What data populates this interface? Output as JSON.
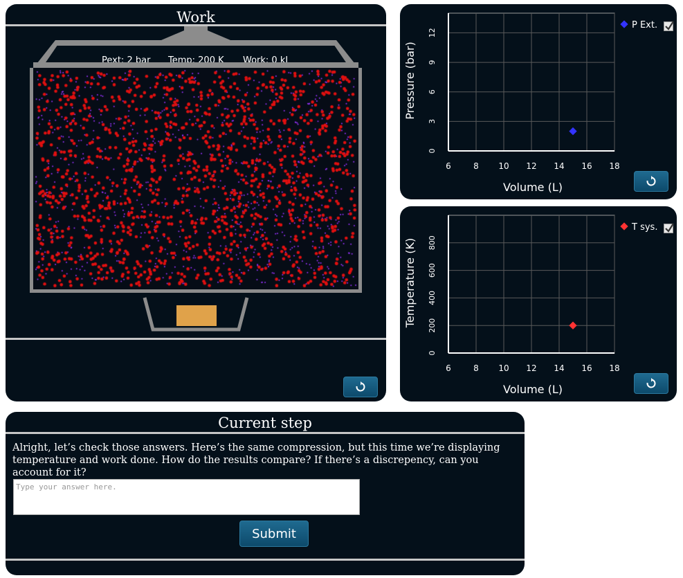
{
  "work_panel": {
    "title": "Work",
    "readouts": {
      "pext": "Pext: 2 bar",
      "temp": "Temp: 200 K",
      "work": "Work: 0 kJ"
    },
    "reset_icon": "reset-icon"
  },
  "pressure_graph": {
    "legend_label": "P Ext.",
    "legend_color": "#3333ff",
    "checked": true,
    "chart_data": {
      "type": "scatter",
      "xlabel": "Volume (L)",
      "ylabel": "Pressure (bar)",
      "xlim": [
        6,
        18
      ],
      "ylim": [
        0,
        14
      ],
      "x_ticks": [
        6,
        8,
        10,
        12,
        14,
        16,
        18
      ],
      "y_ticks": [
        0,
        3,
        6,
        9,
        12
      ],
      "grid": true,
      "legend": "top-right",
      "series": [
        {
          "name": "P Ext.",
          "color": "#3333ff",
          "points": [
            [
              15,
              2
            ]
          ]
        }
      ]
    }
  },
  "temperature_graph": {
    "legend_label": "T sys.",
    "legend_color": "#ff3333",
    "checked": true,
    "chart_data": {
      "type": "scatter",
      "xlabel": "Volume (L)",
      "ylabel": "Temperature (K)",
      "xlim": [
        6,
        18
      ],
      "ylim": [
        0,
        1000
      ],
      "x_ticks": [
        6,
        8,
        10,
        12,
        14,
        16,
        18
      ],
      "y_ticks": [
        0,
        200,
        400,
        600,
        800
      ],
      "grid": true,
      "legend": "top-right",
      "series": [
        {
          "name": "T sys.",
          "color": "#ff3333",
          "points": [
            [
              15,
              200
            ]
          ]
        }
      ]
    }
  },
  "current_step": {
    "title": "Current step",
    "prompt": "Alright, let’s check those answers. Here’s the same compression, but this time we’re displaying temperature and work done. How do the results compare? If there’s a discrepency, can you account for it?",
    "answer_placeholder": "Type your answer here.",
    "answer_value": "",
    "submit_label": "Submit"
  },
  "colors": {
    "panel_bg": "#04101a",
    "particle_red": "#e01010",
    "particle_purple": "#9933ff",
    "weight": "#e0a24a",
    "button": "#1a5f85"
  }
}
